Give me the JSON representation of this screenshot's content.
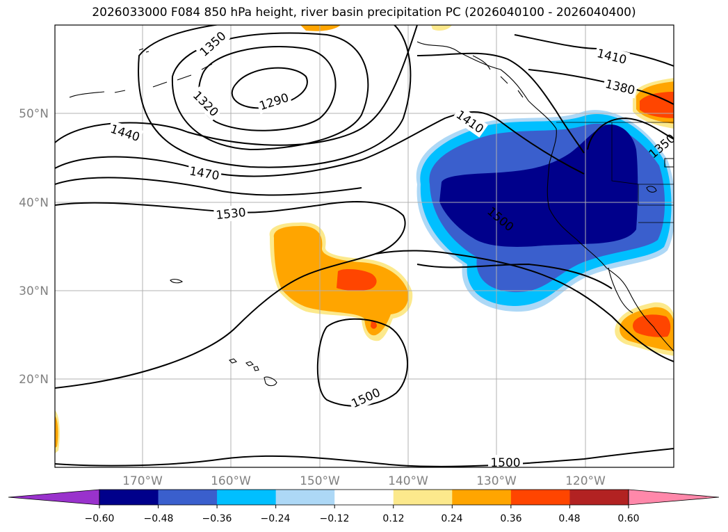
{
  "title": "2026033000 F084 850 hPa height, river basin precipitation PC (2026040100 - 2026040400)",
  "axes": {
    "lon_ticks": [
      "170°W",
      "160°W",
      "150°W",
      "140°W",
      "130°W",
      "120°W"
    ],
    "lat_ticks": [
      "50°N",
      "40°N",
      "30°N",
      "20°N"
    ],
    "axis_label_color": "#808080"
  },
  "contours": {
    "labels": [
      "1350",
      "1320",
      "1290",
      "1440",
      "1470",
      "1530",
      "1410",
      "1380",
      "1410",
      "1500",
      "1500",
      "1500",
      "1350"
    ]
  },
  "colorbar": {
    "ticks": [
      "−0.60",
      "−0.48",
      "−0.36",
      "−0.24",
      "−0.12",
      "0.12",
      "0.24",
      "0.36",
      "0.48",
      "0.60"
    ],
    "colors": [
      "#9932cc",
      "#00008b",
      "#3a5fcd",
      "#00bfff",
      "#add8f6",
      "#ffffff",
      "#fce98c",
      "#ffa500",
      "#ff4500",
      "#b22222",
      "#ff88aa"
    ]
  },
  "colors": {
    "strong_negative": "#00008b",
    "negative": "#3a5fcd",
    "weak_negative": "#00bfff",
    "faint_negative": "#add8f6",
    "faint_positive": "#fce98c",
    "positive": "#ffa500",
    "strong_positive": "#ff4500"
  }
}
